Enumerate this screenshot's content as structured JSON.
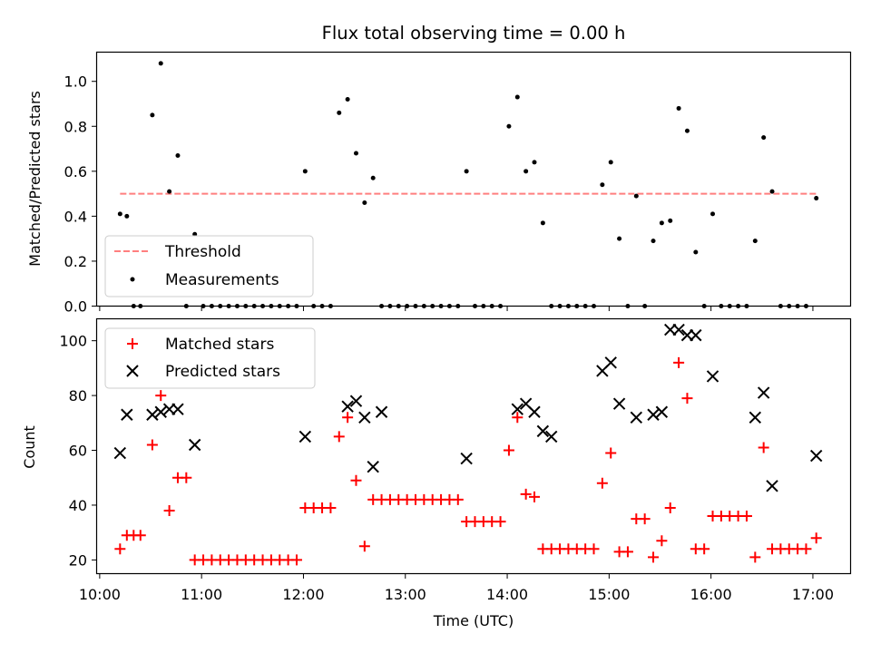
{
  "title": "Flux total observing time = 0.00 h",
  "xlabel": "Time (UTC)",
  "colors": {
    "threshold": "#ff7f7f",
    "measurement": "#000000",
    "matched": "#ff0000",
    "predicted": "#000000"
  },
  "chart_data": [
    {
      "type": "scatter",
      "ylabel": "Matched/Predicted stars",
      "ylim": [
        0,
        1.13
      ],
      "yticks": [
        "0.0",
        "0.2",
        "0.4",
        "0.6",
        "0.8",
        "1.0"
      ],
      "xticks": [
        "10:00",
        "11:00",
        "12:00",
        "13:00",
        "14:00",
        "15:00",
        "16:00",
        "17:00"
      ],
      "xlim_hours": [
        9.97,
        17.37
      ],
      "legend": {
        "placement": "lower-left",
        "entries": [
          "Threshold",
          "Measurements"
        ]
      },
      "threshold": {
        "name": "Threshold",
        "y": 0.5,
        "x_start": "10:12",
        "x_end": "17:02"
      },
      "measurements": {
        "name": "Measurements",
        "x": [
          "10:12",
          "10:16",
          "10:20",
          "10:24",
          "10:31",
          "10:36",
          "10:41",
          "10:46",
          "10:51",
          "10:56",
          "11:01",
          "11:06",
          "11:11",
          "11:16",
          "11:21",
          "11:26",
          "11:31",
          "11:36",
          "11:41",
          "11:46",
          "11:51",
          "11:56",
          "12:01",
          "12:06",
          "12:11",
          "12:16",
          "12:21",
          "12:26",
          "12:31",
          "12:36",
          "12:41",
          "12:46",
          "12:51",
          "12:56",
          "13:01",
          "13:06",
          "13:11",
          "13:16",
          "13:21",
          "13:26",
          "13:31",
          "13:36",
          "13:41",
          "13:46",
          "13:51",
          "13:56",
          "14:01",
          "14:06",
          "14:11",
          "14:16",
          "14:21",
          "14:26",
          "14:31",
          "14:36",
          "14:41",
          "14:46",
          "14:51",
          "14:56",
          "15:01",
          "15:06",
          "15:11",
          "15:16",
          "15:21",
          "15:26",
          "15:31",
          "15:36",
          "15:41",
          "15:46",
          "15:51",
          "15:56",
          "16:01",
          "16:06",
          "16:11",
          "16:16",
          "16:21",
          "16:26",
          "16:31",
          "16:36",
          "16:41",
          "16:46",
          "16:51",
          "16:56",
          "17:02"
        ],
        "y": [
          0.41,
          0.4,
          0,
          0,
          0.85,
          1.08,
          0.51,
          0.67,
          0,
          0.32,
          0,
          0,
          0,
          0,
          0,
          0,
          0,
          0,
          0,
          0,
          0,
          0,
          0.6,
          0,
          0,
          0,
          0.86,
          0.92,
          0.68,
          0.46,
          0.57,
          0,
          0,
          0,
          0,
          0,
          0,
          0,
          0,
          0,
          0,
          0.6,
          0,
          0,
          0,
          0,
          0.8,
          0.93,
          0.6,
          0.64,
          0.37,
          0,
          0,
          0,
          0,
          0,
          0,
          0.54,
          0.64,
          0.3,
          0,
          0.49,
          0,
          0.29,
          0.37,
          0.38,
          0.88,
          0.78,
          0.24,
          0,
          0.41,
          0,
          0,
          0,
          0,
          0.29,
          0.75,
          0.51,
          0,
          0,
          0,
          0,
          0.48
        ]
      }
    },
    {
      "type": "scatter",
      "ylabel": "Count",
      "ylim": [
        15,
        108
      ],
      "yticks": [
        "20",
        "40",
        "60",
        "80",
        "100"
      ],
      "xticks": [
        "10:00",
        "11:00",
        "12:00",
        "13:00",
        "14:00",
        "15:00",
        "16:00",
        "17:00"
      ],
      "xlim_hours": [
        9.97,
        17.37
      ],
      "legend": {
        "placement": "upper-left",
        "entries": [
          "Matched stars",
          "Predicted stars"
        ]
      },
      "matched": {
        "name": "Matched stars",
        "x": [
          "10:12",
          "10:16",
          "10:20",
          "10:24",
          "10:31",
          "10:36",
          "10:41",
          "10:46",
          "10:51",
          "10:56",
          "11:01",
          "11:06",
          "11:11",
          "11:16",
          "11:21",
          "11:26",
          "11:31",
          "11:36",
          "11:41",
          "11:46",
          "11:51",
          "11:56",
          "12:01",
          "12:06",
          "12:11",
          "12:16",
          "12:21",
          "12:26",
          "12:31",
          "12:36",
          "12:41",
          "12:46",
          "12:51",
          "12:56",
          "13:01",
          "13:06",
          "13:11",
          "13:16",
          "13:21",
          "13:26",
          "13:31",
          "13:36",
          "13:41",
          "13:46",
          "13:51",
          "13:56",
          "14:01",
          "14:06",
          "14:11",
          "14:16",
          "14:21",
          "14:26",
          "14:31",
          "14:36",
          "14:41",
          "14:46",
          "14:51",
          "14:56",
          "15:01",
          "15:06",
          "15:11",
          "15:16",
          "15:21",
          "15:26",
          "15:31",
          "15:36",
          "15:41",
          "15:46",
          "15:51",
          "15:56",
          "16:01",
          "16:06",
          "16:11",
          "16:16",
          "16:21",
          "16:26",
          "16:31",
          "16:36",
          "16:41",
          "16:46",
          "16:51",
          "16:56",
          "17:02"
        ],
        "y": [
          24,
          29,
          29,
          29,
          62,
          80,
          38,
          50,
          50,
          20,
          20,
          20,
          20,
          20,
          20,
          20,
          20,
          20,
          20,
          20,
          20,
          20,
          39,
          39,
          39,
          39,
          65,
          72,
          49,
          25,
          42,
          42,
          42,
          42,
          42,
          42,
          42,
          42,
          42,
          42,
          42,
          34,
          34,
          34,
          34,
          34,
          60,
          72,
          44,
          43,
          24,
          24,
          24,
          24,
          24,
          24,
          24,
          48,
          59,
          23,
          23,
          35,
          35,
          21,
          27,
          39,
          92,
          79,
          24,
          24,
          36,
          36,
          36,
          36,
          36,
          21,
          61,
          24,
          24,
          24,
          24,
          24,
          28
        ]
      },
      "predicted": {
        "name": "Predicted stars",
        "x": [
          "10:12",
          "10:16",
          "10:31",
          "10:36",
          "10:41",
          "10:46",
          "10:56",
          "12:01",
          "12:26",
          "12:31",
          "12:36",
          "12:41",
          "12:46",
          "13:36",
          "14:06",
          "14:11",
          "14:16",
          "14:21",
          "14:26",
          "14:56",
          "15:01",
          "15:06",
          "15:16",
          "15:26",
          "15:31",
          "15:36",
          "15:41",
          "15:46",
          "15:51",
          "16:01",
          "16:26",
          "16:31",
          "16:36",
          "17:02"
        ],
        "y": [
          59,
          73,
          73,
          74,
          75,
          75,
          62,
          65,
          76,
          78,
          72,
          54,
          74,
          57,
          75,
          77,
          74,
          67,
          65,
          89,
          92,
          77,
          72,
          73,
          74,
          104,
          104,
          102,
          102,
          87,
          72,
          81,
          47,
          58
        ]
      }
    }
  ]
}
